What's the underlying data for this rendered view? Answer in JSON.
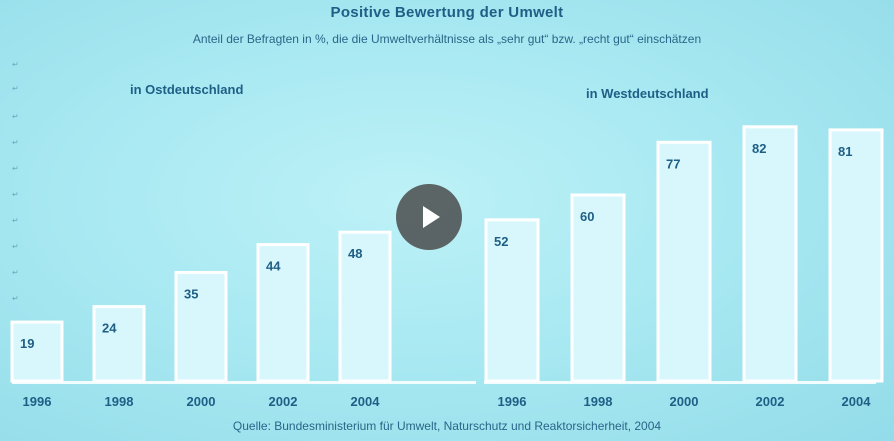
{
  "chart_data": {
    "type": "bar",
    "title": "Positive Bewertung der Umwelt",
    "subtitle": "Anteil der Befragten in %, die die Umweltverhältnisse als „sehr gut“ bzw. „recht gut“ einschätzen",
    "source": "Quelle: Bundesministerium für Umwelt, Naturschutz und Reaktorsicherheit, 2004",
    "ylim": [
      0,
      90
    ],
    "panels": [
      {
        "name": "in Ostdeutschland",
        "categories": [
          "1996",
          "1998",
          "2000",
          "2002",
          "2004"
        ],
        "values": [
          19,
          24,
          35,
          44,
          48
        ]
      },
      {
        "name": "in Westdeutschland",
        "categories": [
          "1996",
          "1998",
          "2000",
          "2002",
          "2004"
        ],
        "values": [
          52,
          60,
          77,
          82,
          81
        ]
      }
    ],
    "colors": {
      "bar_fill": "#d8f7fc",
      "bar_stroke": "#ffffff",
      "text": "#1f5f86"
    }
  },
  "video": {
    "play_icon": "play-icon"
  }
}
